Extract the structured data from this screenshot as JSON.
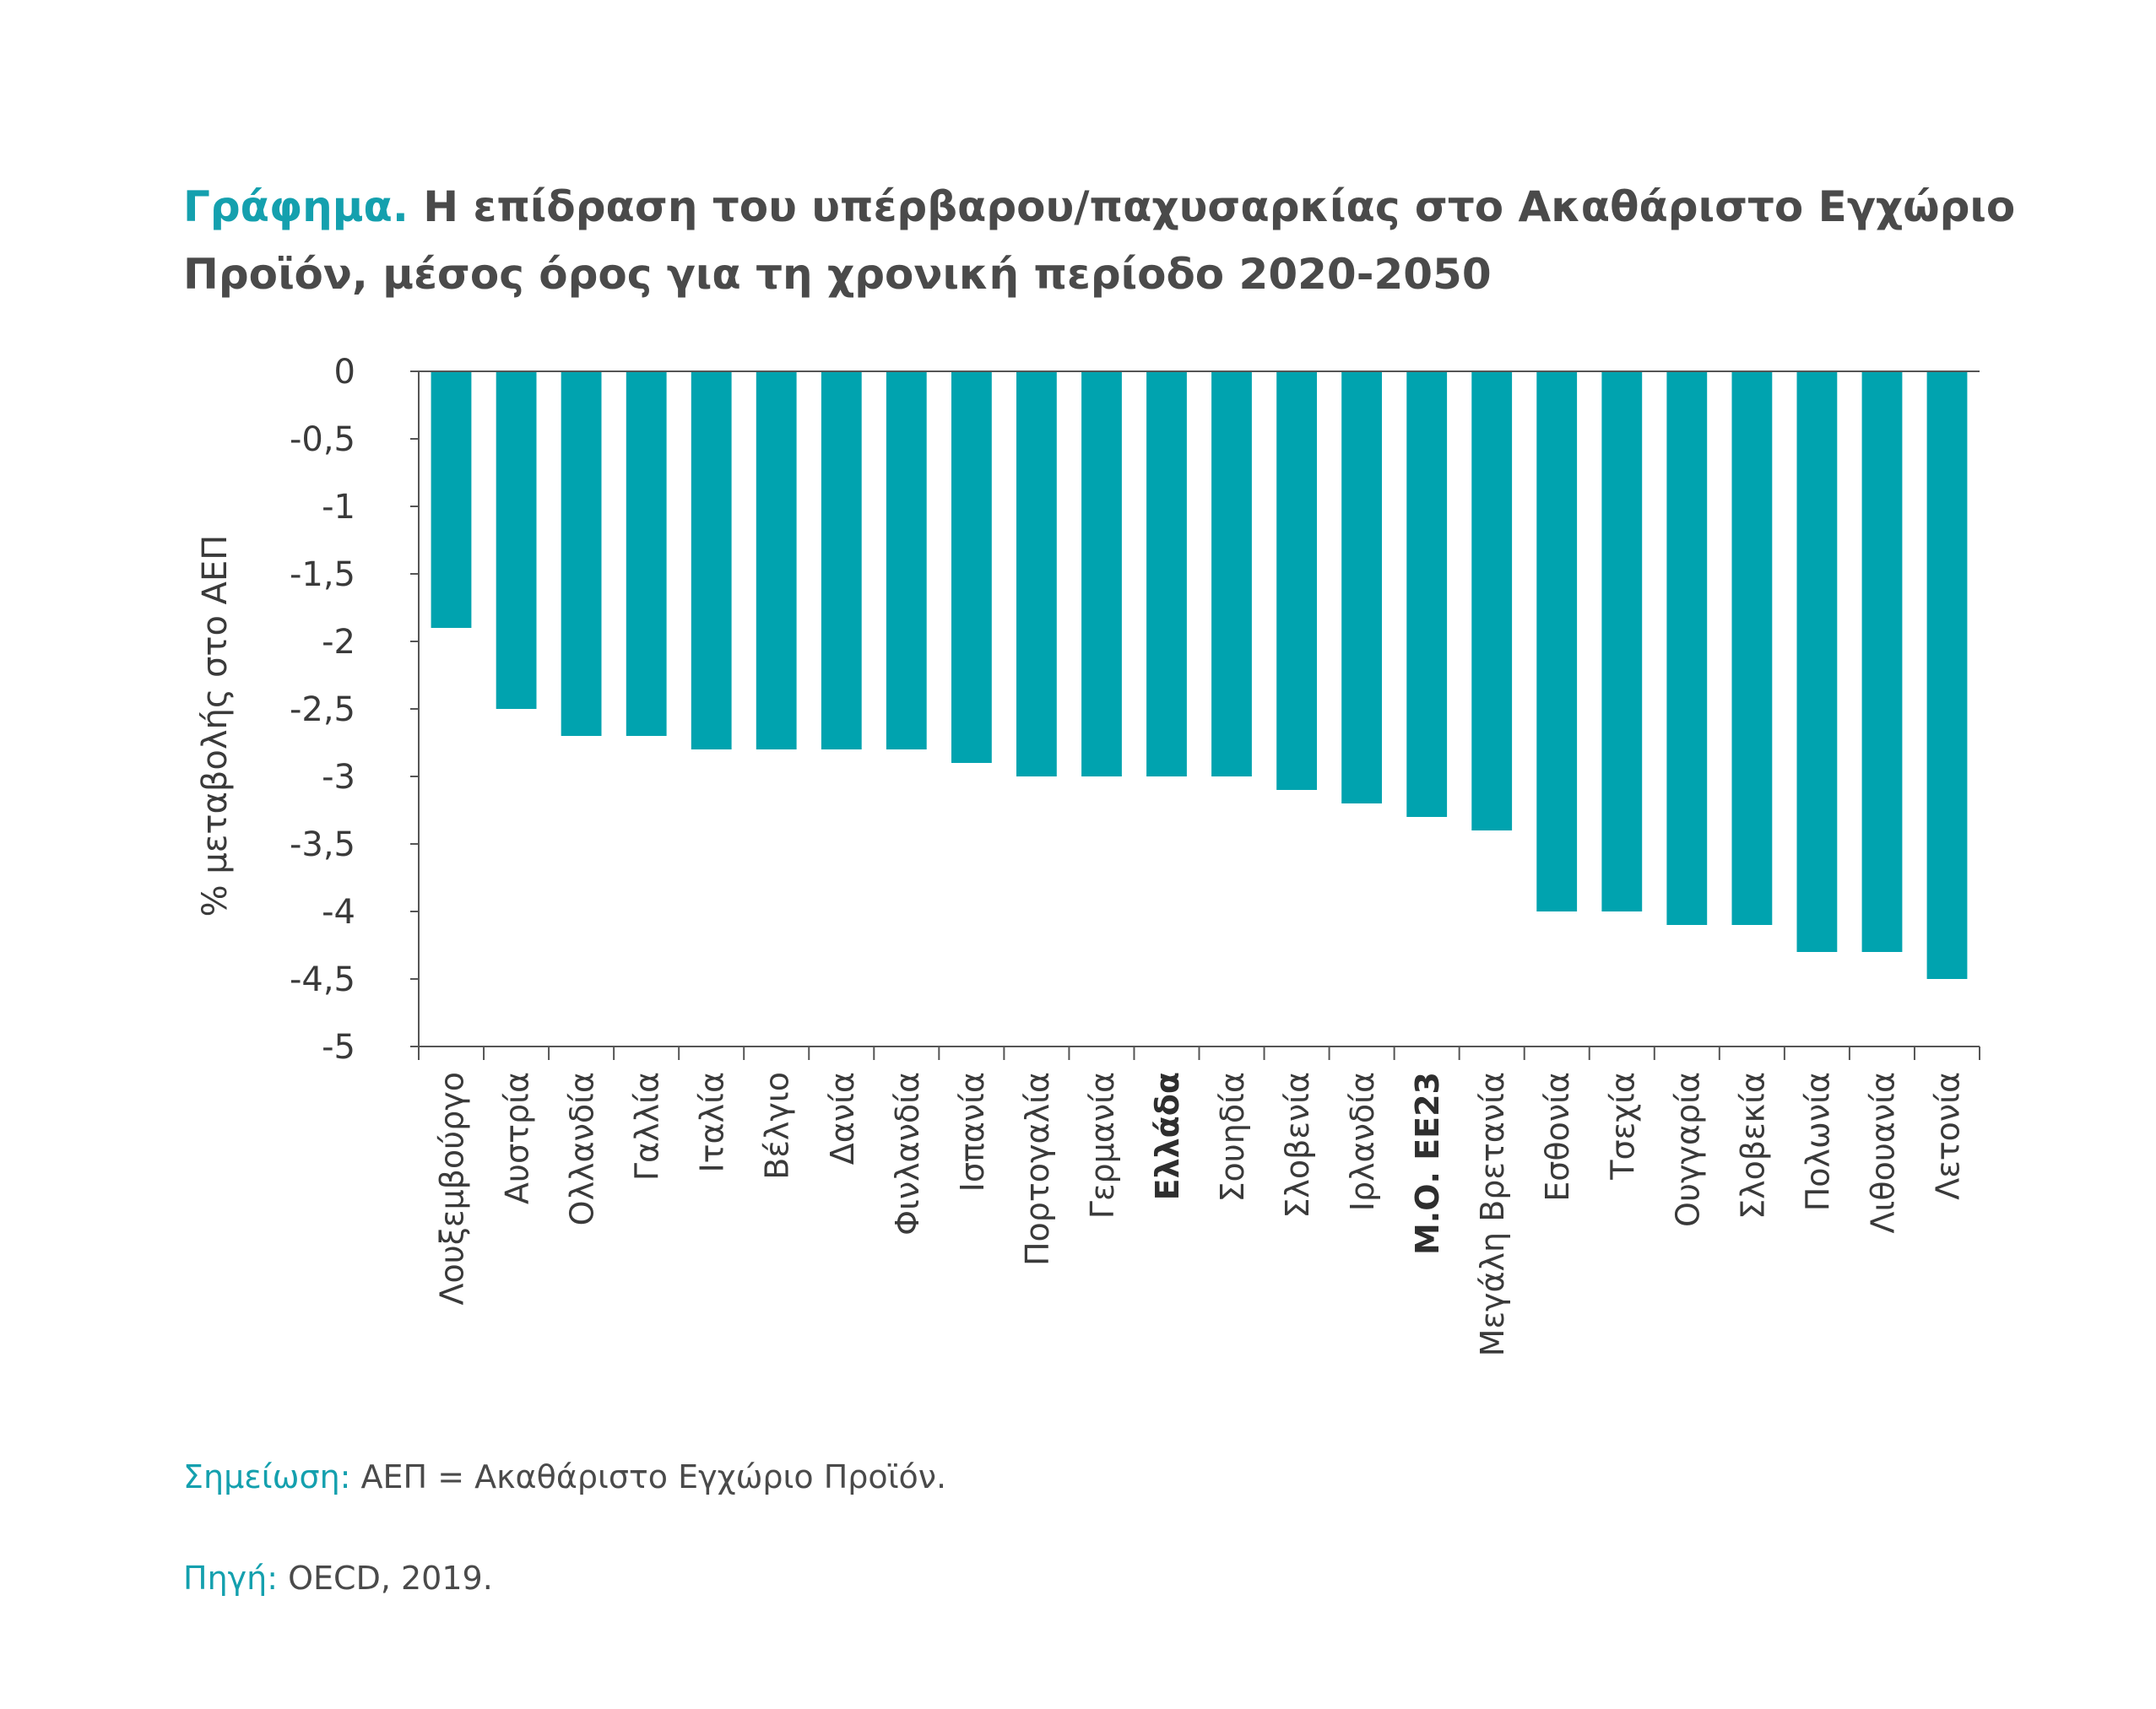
{
  "title": {
    "lead": "Γράφημα.",
    "text": "Η επίδραση του υπέρβαρου/παχυσαρκίας στο Ακαθάριστο Εγχώριο Προϊόν, μέσος όρος για τη χρονική περίοδο 2020-2050"
  },
  "chart_data": {
    "type": "bar",
    "ylabel": "% μεταβολής στο ΑΕΠ",
    "xlabel": "",
    "ylim": [
      -5,
      0
    ],
    "yticks": [
      0,
      -0.5,
      -1,
      -1.5,
      -2,
      -2.5,
      -3,
      -3.5,
      -4,
      -4.5,
      -5
    ],
    "ytick_labels": [
      "0",
      "-0,5",
      "-1",
      "-1,5",
      "-2",
      "-2,5",
      "-3",
      "-3,5",
      "-4",
      "-4,5",
      "-5"
    ],
    "categories": [
      "Λουξεμβούργο",
      "Αυστρία",
      "Ολλανδία",
      "Γαλλία",
      "Ιταλία",
      "Βέλγιο",
      "Δανία",
      "Φινλανδία",
      "Ισπανία",
      "Πορτογαλία",
      "Γερμανία",
      "Ελλάδα",
      "Σουηδία",
      "Σλοβενία",
      "Ιρλανδία",
      "Μ.Ο. ΕΕ23",
      "Μεγάλη Βρετανία",
      "Εσθονία",
      "Τσεχία",
      "Ουγγαρία",
      "Σλοβεκία",
      "Πολωνία",
      "Λιθουανία",
      "Λετονία"
    ],
    "bold_categories": [
      "Ελλάδα",
      "Μ.Ο. ΕΕ23"
    ],
    "values": [
      -1.9,
      -2.5,
      -2.7,
      -2.7,
      -2.8,
      -2.8,
      -2.8,
      -2.8,
      -2.9,
      -3.0,
      -3.0,
      -3.0,
      -3.0,
      -3.1,
      -3.2,
      -3.3,
      -3.4,
      -4.0,
      -4.0,
      -4.1,
      -4.1,
      -4.3,
      -4.3,
      -4.5
    ],
    "grid": false,
    "legend": "none",
    "colors": {
      "bar": "#00a3af",
      "axis": "#555555"
    }
  },
  "notes": [
    {
      "lead": "Σημείωση:",
      "text": " ΑΕΠ = Ακαθάριστο Εγχώριο Προϊόν."
    },
    {
      "lead": "Πηγή:",
      "text": " OECD, 2019."
    }
  ],
  "colors": {
    "accent": "#14a0ae",
    "text": "#4a4a4a"
  }
}
